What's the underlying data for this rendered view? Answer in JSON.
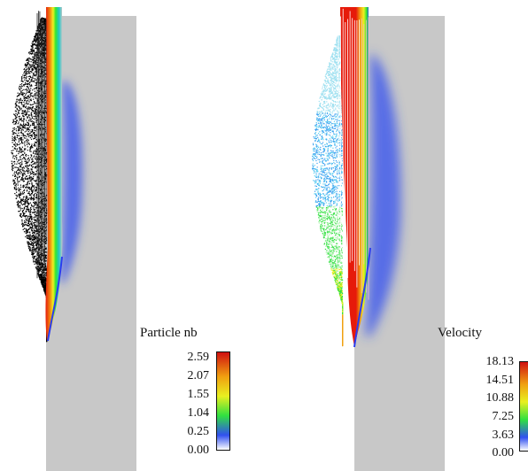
{
  "panels": [
    {
      "legend_title": "Particle nb",
      "ticks": [
        "2.59",
        "2.07",
        "1.55",
        "1.04",
        "0.25",
        "0.00"
      ],
      "particle_color": "black"
    },
    {
      "legend_title": "Velocity",
      "ticks": [
        "18.13",
        "14.51",
        "10.88",
        "7.25",
        "3.63",
        "0.00"
      ],
      "particle_color": "velocity-colored"
    }
  ],
  "colors": {
    "domain": "#c8c8c8",
    "low": "#2a3cf0",
    "mid": "#32e632",
    "midhigh": "#f0f020",
    "high": "#e61a0a"
  }
}
